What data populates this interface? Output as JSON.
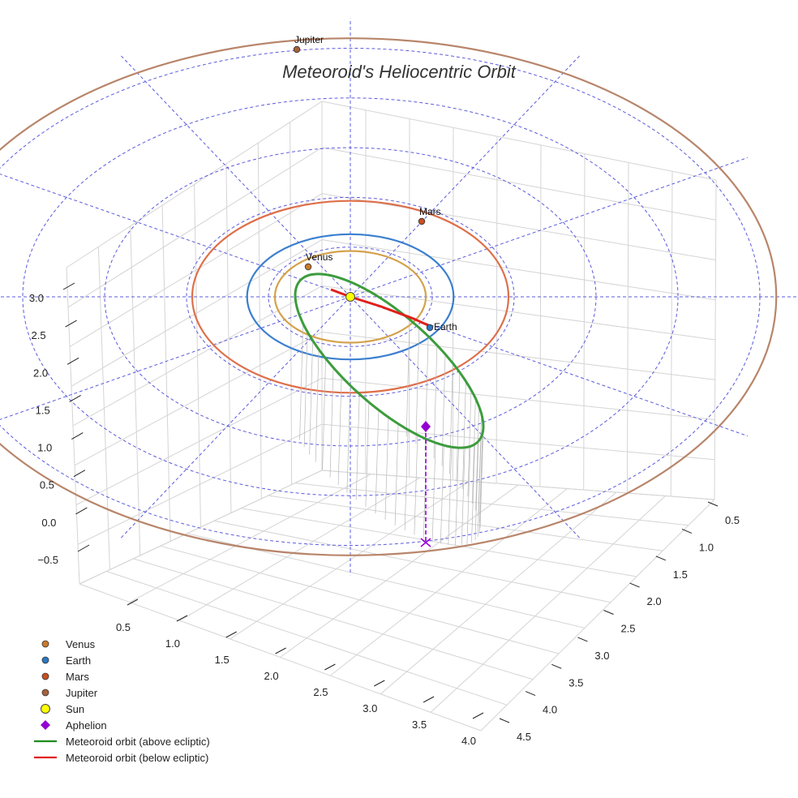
{
  "chart_data": {
    "type": "scatter",
    "title": "Meteoroid's Heliocentric Orbit",
    "x_axis": {
      "ticks": [
        "0.5",
        "1.0",
        "1.5",
        "2.0",
        "2.5",
        "3.0",
        "3.5",
        "4.0"
      ]
    },
    "y_axis": {
      "ticks": [
        "0.5",
        "1.0",
        "1.5",
        "2.0",
        "2.5",
        "3.0",
        "3.5",
        "4.0",
        "4.5"
      ]
    },
    "z_axis": {
      "ticks": [
        "3.0",
        "2.5",
        "2.0",
        "1.5",
        "1.0",
        "0.5",
        "0.0",
        "−0.5"
      ]
    },
    "planets": [
      {
        "name": "Venus",
        "orbit_au": 0.72,
        "color": "#d4a24c",
        "marker": "#c97a2b"
      },
      {
        "name": "Earth",
        "orbit_au": 1.0,
        "color": "#3b7fcf",
        "marker": "#2b78c2"
      },
      {
        "name": "Mars",
        "orbit_au": 1.52,
        "color": "#de6f4a",
        "marker": "#c94f1f"
      },
      {
        "name": "Jupiter",
        "orbit_au": 5.2,
        "color": "#b8856a",
        "marker": "#a8613a"
      }
    ],
    "sun": {
      "name": "Sun",
      "color": "#ffff00"
    },
    "aphelion": {
      "name": "Aphelion",
      "color": "#9400d3"
    },
    "series": [
      {
        "name": "Meteoroid orbit (above ecliptic)",
        "color": "#3c9c3c"
      },
      {
        "name": "Meteoroid orbit (below ecliptic)",
        "color": "#e0201c"
      }
    ],
    "grid_rings_au": [
      1,
      2,
      3,
      4,
      5
    ],
    "legend_position": "bottom-left"
  },
  "legend": [
    {
      "label": "Venus",
      "kind": "dot",
      "color": "#c97a2b"
    },
    {
      "label": "Earth",
      "kind": "dot",
      "color": "#2b78c2"
    },
    {
      "label": "Mars",
      "kind": "dot",
      "color": "#c94f1f"
    },
    {
      "label": "Jupiter",
      "kind": "dot",
      "color": "#a8613a"
    },
    {
      "label": "Sun",
      "kind": "sun",
      "color": "#ffff00"
    },
    {
      "label": "Aphelion",
      "kind": "diamond",
      "color": "#9400d3"
    },
    {
      "label": "Meteoroid orbit (above ecliptic)",
      "kind": "line",
      "color": "#1e8c1e"
    },
    {
      "label": "Meteoroid orbit (below ecliptic)",
      "kind": "line",
      "color": "#e0201c"
    }
  ]
}
